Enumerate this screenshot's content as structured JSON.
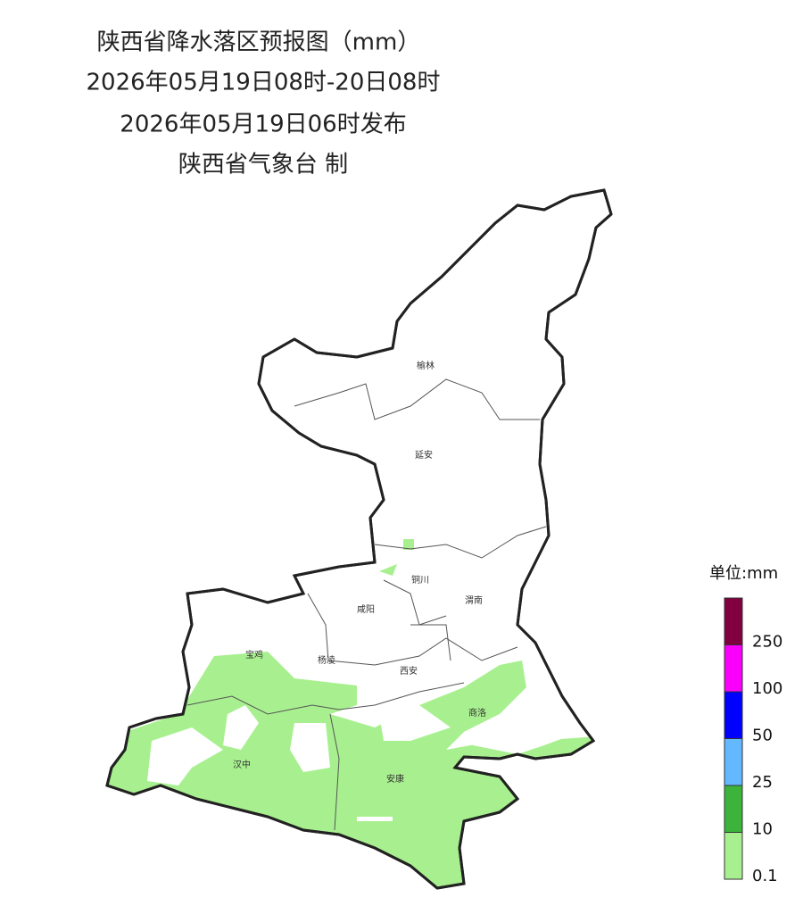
{
  "header": {
    "title": "陕西省降水落区预报图（mm）",
    "period": "2026年05月19日08时-20日08时",
    "issued": "2026年05月19日06时发布",
    "producer": "陕西省气象台 制"
  },
  "cities": [
    "榆林",
    "延安",
    "铜川",
    "咸阳",
    "渭南",
    "宝鸡",
    "杨凌",
    "西安",
    "商洛",
    "汉中",
    "安康"
  ],
  "legend": {
    "title": "单位:mm",
    "levels": [
      {
        "value": 0.1,
        "color": "#a8f08f"
      },
      {
        "value": 10,
        "color": "#3cb43c"
      },
      {
        "value": 25,
        "color": "#63b8ff"
      },
      {
        "value": 50,
        "color": "#0000fe"
      },
      {
        "value": 100,
        "color": "#fa00fa"
      },
      {
        "value": 250,
        "color": "#800040"
      }
    ]
  }
}
